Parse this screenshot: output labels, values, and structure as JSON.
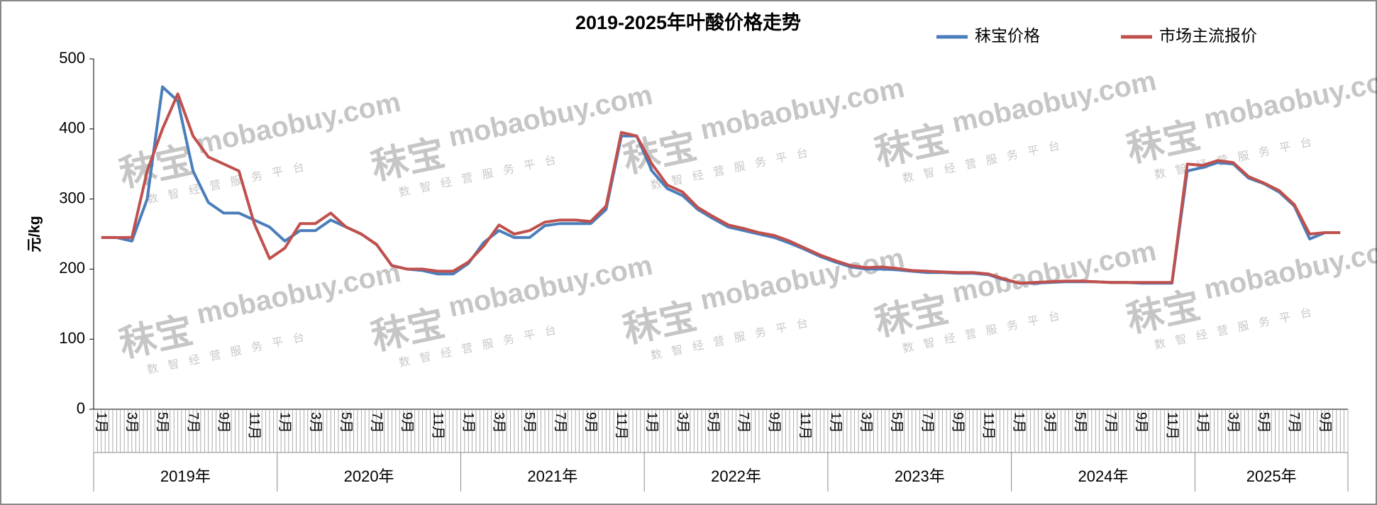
{
  "chart_data": {
    "type": "line",
    "title": "2019-2025年叶酸价格走势",
    "y_label": "元/kg",
    "watermark": [
      "秣宝",
      "mobaobuy.com",
      "数智经营服务平台"
    ],
    "categories": [
      "1月",
      null,
      "3月",
      null,
      "5月",
      null,
      "7月",
      null,
      "9月",
      null,
      "11月",
      null,
      "1月",
      null,
      "3月",
      null,
      "5月",
      null,
      "7月",
      null,
      "9月",
      null,
      "11月",
      null,
      "1月",
      null,
      "3月",
      null,
      "5月",
      null,
      "7月",
      null,
      "9月",
      null,
      "11月",
      null,
      "1月",
      null,
      "3月",
      null,
      "5月",
      null,
      "7月",
      null,
      "9月",
      null,
      "11月",
      null,
      "1月",
      null,
      "3月",
      null,
      "5月",
      null,
      "7月",
      null,
      "9月",
      null,
      "11月",
      null,
      "1月",
      null,
      "3月",
      null,
      "5月",
      null,
      "7月",
      null,
      "9月",
      null,
      "11月",
      null,
      "1月",
      null,
      "3月",
      null,
      "5月",
      null,
      "7月",
      null,
      "9月",
      null
    ],
    "years": [
      "2019年",
      "2020年",
      "2021年",
      "2022年",
      "2023年",
      "2024年",
      "2025年"
    ],
    "series": [
      {
        "name": "秣宝价格",
        "color": "#4a7ebb",
        "values": [
          245,
          245,
          240,
          300,
          460,
          440,
          340,
          295,
          280,
          280,
          270,
          260,
          240,
          255,
          255,
          270,
          260,
          250,
          235,
          205,
          200,
          198,
          193,
          193,
          208,
          238,
          255,
          245,
          245,
          262,
          265,
          265,
          265,
          285,
          390,
          390,
          340,
          315,
          305,
          285,
          272,
          260,
          255,
          250,
          245,
          237,
          228,
          218,
          210,
          203,
          200,
          200,
          199,
          197,
          195,
          195,
          194,
          194,
          192,
          185,
          180,
          180,
          181,
          182,
          182,
          182,
          181,
          181,
          180,
          180,
          180,
          340,
          345,
          352,
          350,
          330,
          322,
          310,
          290,
          243,
          252,
          252
        ]
      },
      {
        "name": "市场主流报价",
        "color": "#c0504d",
        "values": [
          245,
          245,
          245,
          340,
          400,
          450,
          390,
          360,
          350,
          340,
          265,
          215,
          230,
          265,
          265,
          280,
          260,
          250,
          235,
          205,
          200,
          200,
          197,
          197,
          210,
          233,
          263,
          250,
          255,
          267,
          270,
          270,
          268,
          290,
          395,
          390,
          350,
          320,
          310,
          288,
          275,
          263,
          258,
          252,
          248,
          240,
          230,
          220,
          212,
          205,
          202,
          203,
          201,
          198,
          197,
          196,
          195,
          195,
          193,
          186,
          180,
          181,
          182,
          183,
          183,
          182,
          181,
          181,
          181,
          181,
          181,
          350,
          348,
          355,
          352,
          332,
          323,
          312,
          292,
          250,
          252,
          252
        ]
      }
    ],
    "ylim": [
      0,
      500
    ],
    "yticks": [
      0,
      100,
      200,
      300,
      400,
      500
    ],
    "legend": "top-right"
  }
}
